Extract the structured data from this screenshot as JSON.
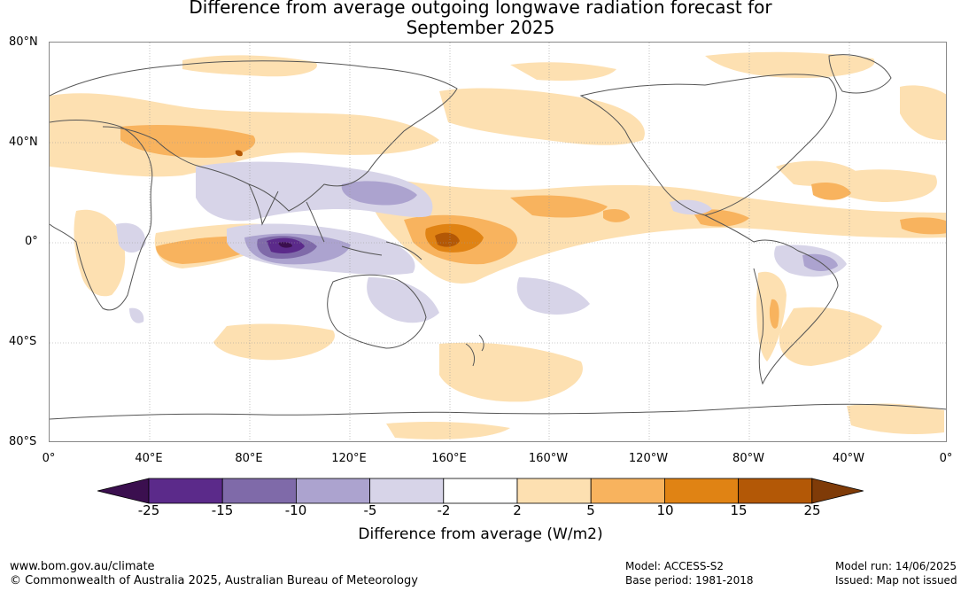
{
  "title": {
    "line1": "Difference from average outgoing longwave radiation forecast for",
    "line2": "September 2025"
  },
  "map": {
    "lat_labels": [
      "80°N",
      "40°N",
      "0°",
      "40°S",
      "80°S"
    ],
    "lon_labels": [
      "0°",
      "40°E",
      "80°E",
      "120°E",
      "160°E",
      "160°W",
      "120°W",
      "80°W",
      "40°W",
      "0°"
    ]
  },
  "colorbar": {
    "ticks": [
      "-25",
      "-15",
      "-10",
      "-5",
      "-2",
      "2",
      "5",
      "10",
      "15",
      "25"
    ],
    "colors": [
      "#3b0f4f",
      "#5b2a8a",
      "#7f6aa9",
      "#aca3cf",
      "#d7d4e8",
      "#ffffff",
      "#fde0b1",
      "#f8b35e",
      "#e08314",
      "#b35806",
      "#7f3b08"
    ],
    "label": "Difference from average (W/m2)"
  },
  "footer": {
    "website": "www.bom.gov.au/climate",
    "copyright": "© Commonwealth of Australia 2025, Australian Bureau of Meteorology",
    "model": "Model: ACCESS-S2",
    "base_period": "Base period: 1981-2018",
    "model_run": "Model run: 14/06/2025",
    "issued": "Issued: Map not issued"
  }
}
